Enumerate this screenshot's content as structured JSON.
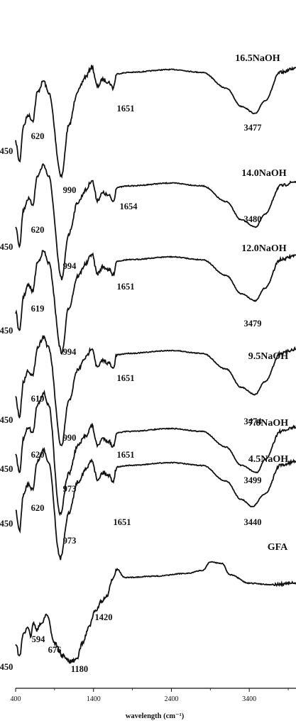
{
  "chart_data": {
    "type": "line",
    "xlabel": "wavelength (cm⁻¹)",
    "xlim": [
      400,
      4000
    ],
    "x_ticks": [
      "400",
      "1400",
      "2400",
      "3400"
    ],
    "series": [
      {
        "name": "16.5NaOH",
        "peaks": [
          {
            "x": 450,
            "label": "450"
          },
          {
            "x": 620,
            "label": "620"
          },
          {
            "x": 990,
            "label": "990"
          },
          {
            "x": 1651,
            "label": "1651"
          },
          {
            "x": 3477,
            "label": "3477"
          }
        ]
      },
      {
        "name": "14.0NaOH",
        "peaks": [
          {
            "x": 450,
            "label": "450"
          },
          {
            "x": 620,
            "label": "620"
          },
          {
            "x": 994,
            "label": "994"
          },
          {
            "x": 1654,
            "label": "1654"
          },
          {
            "x": 3480,
            "label": "3480"
          }
        ]
      },
      {
        "name": "12.0NaOH",
        "peaks": [
          {
            "x": 450,
            "label": "450"
          },
          {
            "x": 619,
            "label": "619"
          },
          {
            "x": 994,
            "label": "994"
          },
          {
            "x": 1651,
            "label": "1651"
          },
          {
            "x": 3479,
            "label": "3479"
          }
        ]
      },
      {
        "name": "9.5NaOH",
        "peaks": [
          {
            "x": 450,
            "label": "450"
          },
          {
            "x": 619,
            "label": "619"
          },
          {
            "x": 990,
            "label": "990"
          },
          {
            "x": 1651,
            "label": "1651"
          },
          {
            "x": 3474,
            "label": "3474"
          }
        ]
      },
      {
        "name": "7.0NaOH",
        "peaks": [
          {
            "x": 450,
            "label": "450"
          },
          {
            "x": 620,
            "label": "620"
          },
          {
            "x": 973,
            "label": "973"
          },
          {
            "x": 1651,
            "label": "1651"
          },
          {
            "x": 3499,
            "label": "3499"
          }
        ]
      },
      {
        "name": "4.5NaOH",
        "peaks": [
          {
            "x": 450,
            "label": "450"
          },
          {
            "x": 620,
            "label": "620"
          },
          {
            "x": 973,
            "label": "973"
          },
          {
            "x": 1651,
            "label": "1651"
          },
          {
            "x": 3440,
            "label": "3440"
          }
        ]
      },
      {
        "name": "GFA",
        "peaks": [
          {
            "x": 450,
            "label": "450"
          },
          {
            "x": 594,
            "label": "594"
          },
          {
            "x": 676,
            "label": "676"
          },
          {
            "x": 1180,
            "label": "1180"
          },
          {
            "x": 1420,
            "label": "1420"
          }
        ]
      }
    ]
  }
}
